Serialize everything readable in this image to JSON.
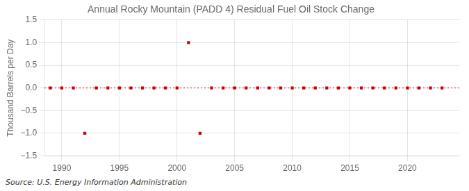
{
  "chart_data": {
    "type": "scatter",
    "title": "Annual Rocky Mountain (PADD 4) Residual Fuel Oil Stock Change",
    "y_label": "Thousand Barrels per Day",
    "annotations": [
      "Source: U.S. Energy Information Administration"
    ],
    "x": [
      1989,
      1990,
      1991,
      1992,
      1993,
      1994,
      1995,
      1996,
      1997,
      1998,
      1999,
      2000,
      2001,
      2002,
      2003,
      2004,
      2005,
      2006,
      2007,
      2008,
      2009,
      2010,
      2011,
      2012,
      2013,
      2014,
      2015,
      2016,
      2017,
      2018,
      2019,
      2020,
      2021,
      2022,
      2023
    ],
    "values": [
      0.0,
      0.0,
      0.0,
      -1.0,
      0.0,
      0.0,
      0.0,
      0.0,
      0.0,
      0.0,
      0.0,
      0.0,
      1.0,
      -1.0,
      0.0,
      0.0,
      0.0,
      0.0,
      0.0,
      0.0,
      0.0,
      0.0,
      0.0,
      0.0,
      0.0,
      0.0,
      0.0,
      0.0,
      0.0,
      0.0,
      0.0,
      0.0,
      0.0,
      0.0,
      0.0
    ],
    "color": "#cc0000",
    "marker": "square",
    "hline": {
      "value": 0,
      "color": "#cc0000",
      "line_style": "dotted"
    },
    "xlim": [
      1988.5,
      2024.5
    ],
    "xticks": [
      1990,
      1995,
      2000,
      2005,
      2010,
      2015,
      2020
    ],
    "ylim": [
      -1.5,
      1.5
    ],
    "yticks": [
      {
        "value": -1.5,
        "label": "−1.5"
      },
      {
        "value": -1.0,
        "label": "−1.0"
      },
      {
        "value": -0.5,
        "label": "−0.5"
      },
      {
        "value": 0.0,
        "label": "0.0"
      },
      0.5,
      {
        "value": 1.0,
        "label": "1.0"
      },
      1.5
    ],
    "grid": true,
    "legend": false
  }
}
